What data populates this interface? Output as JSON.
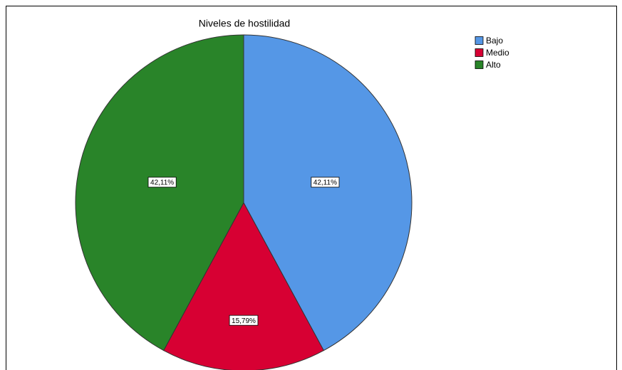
{
  "chart_data": {
    "type": "pie",
    "title": "Niveles de hostilidad",
    "categories": [
      "Bajo",
      "Medio",
      "Alto"
    ],
    "values": [
      42.11,
      15.79,
      42.11
    ],
    "value_labels": [
      "42,11%",
      "15,79%",
      "42,11%"
    ],
    "colors": [
      "#5597e6",
      "#d70033",
      "#298429"
    ],
    "legend": "top-right"
  }
}
